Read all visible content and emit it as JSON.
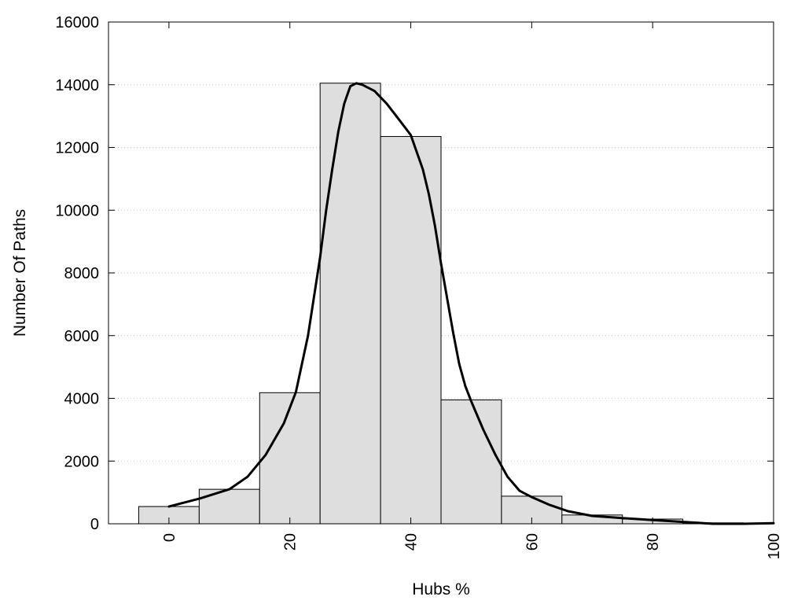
{
  "chart_data": {
    "type": "bar",
    "title": "",
    "xlabel": "Hubs %",
    "ylabel": "Number Of Paths",
    "xlim": [
      -10,
      100
    ],
    "ylim": [
      0,
      16000
    ],
    "x_ticks": [
      0,
      20,
      40,
      60,
      80,
      100
    ],
    "y_ticks": [
      0,
      2000,
      4000,
      6000,
      8000,
      10000,
      12000,
      14000,
      16000
    ],
    "grid": "horizontal dotted",
    "legend": "none",
    "bin_width": 10,
    "bins": [
      {
        "center": 0,
        "value": 550
      },
      {
        "center": 10,
        "value": 1100
      },
      {
        "center": 20,
        "value": 4180
      },
      {
        "center": 30,
        "value": 14050
      },
      {
        "center": 40,
        "value": 12350
      },
      {
        "center": 50,
        "value": 3950
      },
      {
        "center": 60,
        "value": 880
      },
      {
        "center": 70,
        "value": 280
      },
      {
        "center": 80,
        "value": 150
      },
      {
        "center": 90,
        "value": 30
      }
    ],
    "curve": {
      "x": [
        0,
        5,
        10,
        13,
        16,
        19,
        21,
        23,
        25,
        26,
        27,
        28,
        29,
        30,
        31,
        32,
        34,
        36,
        38,
        40,
        42,
        43,
        44,
        45,
        46,
        47,
        48,
        49,
        50,
        52,
        54,
        56,
        58,
        60,
        63,
        66,
        70,
        75,
        80,
        85,
        90,
        95,
        100
      ],
      "y": [
        550,
        800,
        1100,
        1500,
        2200,
        3200,
        4200,
        6000,
        8500,
        10000,
        11300,
        12500,
        13400,
        13950,
        14050,
        14000,
        13800,
        13400,
        12900,
        12400,
        11300,
        10500,
        9500,
        8300,
        7200,
        6100,
        5100,
        4400,
        3900,
        3000,
        2200,
        1500,
        1050,
        850,
        600,
        400,
        250,
        180,
        120,
        60,
        0,
        0,
        20
      ],
      "color": "#000000"
    },
    "bar_fill": "#dedede",
    "bar_stroke": "#000000"
  }
}
